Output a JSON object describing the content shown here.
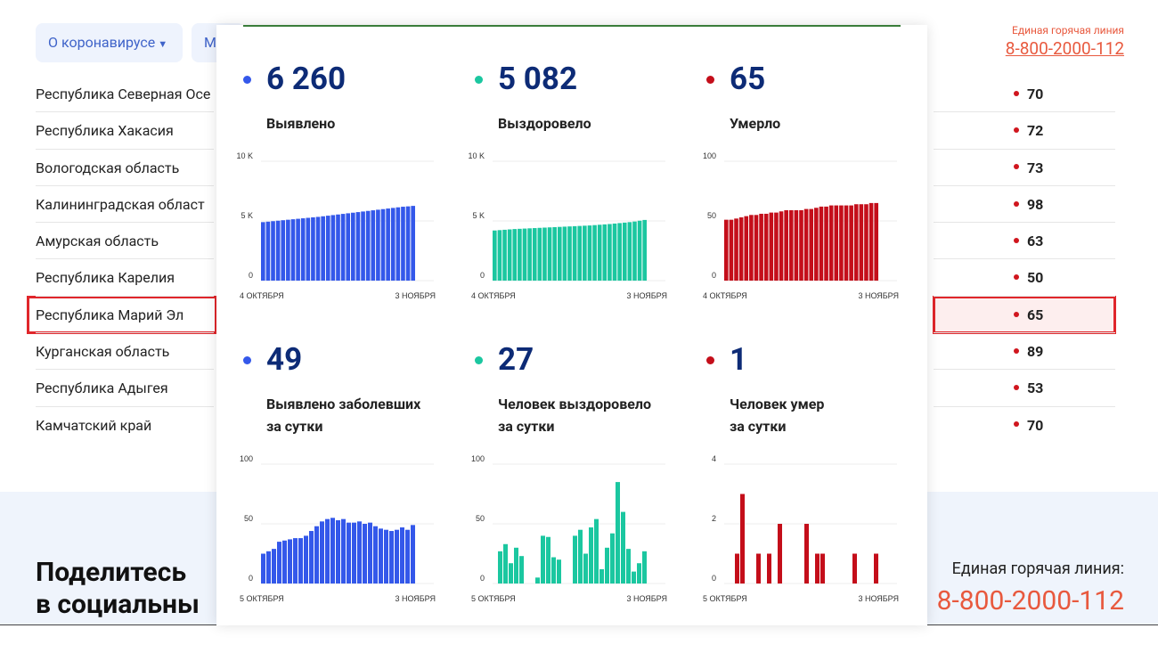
{
  "nav": {
    "about_label": "О коронавирусе",
    "second_label": "М"
  },
  "hotline_top": {
    "label": "Единая горячая линия",
    "number": "8-800-2000-112"
  },
  "regions": [
    {
      "name": "Республика Северная Осе",
      "value": "70"
    },
    {
      "name": "Республика Хакасия",
      "value": "72"
    },
    {
      "name": "Вологодская область",
      "value": "73"
    },
    {
      "name": "Калининградская област",
      "value": "98"
    },
    {
      "name": "Амурская область",
      "value": "63"
    },
    {
      "name": "Республика Карелия",
      "value": "50"
    },
    {
      "name": "Республика Марий Эл",
      "value": "65"
    },
    {
      "name": "Курганская область",
      "value": "89"
    },
    {
      "name": "Республика Адыгея",
      "value": "53"
    },
    {
      "name": "Камчатский край",
      "value": "70"
    }
  ],
  "share": {
    "line1": "Поделитесь ",
    "line2": "в социальны"
  },
  "hotline_bottom": {
    "label": "Единая горячая линия:",
    "number": "8-800-2000-112"
  },
  "colors": {
    "blue": "#3458ea",
    "green": "#1bc7a0",
    "red": "#c40e1a",
    "accent": "#e8593e"
  },
  "metrics": [
    {
      "id": "m0",
      "value": "6 260",
      "label1": "Выявлено",
      "label2": "",
      "color": "blue"
    },
    {
      "id": "m1",
      "value": "5 082",
      "label1": "Выздоровело",
      "label2": "",
      "color": "green"
    },
    {
      "id": "m2",
      "value": "65",
      "label1": "Умерло",
      "label2": "",
      "color": "red"
    },
    {
      "id": "m3",
      "value": "49",
      "label1": "Выявлено заболевших",
      "label2": "за сутки",
      "color": "blue"
    },
    {
      "id": "m4",
      "value": "27",
      "label1": "Человек выздоровело",
      "label2": "за сутки",
      "color": "green"
    },
    {
      "id": "m5",
      "value": "1",
      "label1": "Человек умер",
      "label2": "за сутки",
      "color": "red"
    }
  ],
  "chart_data": [
    {
      "type": "bar",
      "title": "Выявлено",
      "color": "blue",
      "y_ticks": [
        "0",
        "5 K",
        "10 K"
      ],
      "ylim": [
        0,
        10000
      ],
      "x_start_label": "4 ОКТЯБРЯ",
      "x_end_label": "3 НОЯБРЯ",
      "values": [
        4900,
        4940,
        4980,
        5020,
        5060,
        5100,
        5140,
        5180,
        5220,
        5260,
        5300,
        5340,
        5390,
        5440,
        5490,
        5540,
        5590,
        5640,
        5690,
        5740,
        5790,
        5840,
        5890,
        5940,
        5990,
        6040,
        6090,
        6140,
        6190,
        6220,
        6260
      ]
    },
    {
      "type": "bar",
      "title": "Выздоровело",
      "color": "green",
      "y_ticks": [
        "0",
        "5 K",
        "10 K"
      ],
      "ylim": [
        0,
        10000
      ],
      "x_start_label": "4 ОКТЯБРЯ",
      "x_end_label": "3 НОЯБРЯ",
      "values": [
        4200,
        4230,
        4260,
        4290,
        4320,
        4340,
        4360,
        4380,
        4400,
        4420,
        4440,
        4460,
        4480,
        4500,
        4520,
        4540,
        4560,
        4580,
        4600,
        4620,
        4650,
        4680,
        4710,
        4740,
        4780,
        4820,
        4860,
        4900,
        4950,
        5020,
        5082
      ]
    },
    {
      "type": "bar",
      "title": "Умерло",
      "color": "red",
      "y_ticks": [
        "0",
        "50",
        "100"
      ],
      "ylim": [
        0,
        100
      ],
      "x_start_label": "4 ОКТЯБРЯ",
      "x_end_label": "3 НОЯБРЯ",
      "values": [
        51,
        51,
        52,
        53,
        54,
        55,
        55,
        56,
        56,
        57,
        57,
        58,
        59,
        59,
        59,
        59,
        60,
        60,
        61,
        62,
        62,
        63,
        63,
        63,
        63,
        63,
        64,
        64,
        64,
        65,
        65
      ]
    },
    {
      "type": "bar",
      "title": "Выявлено заболевших за сутки",
      "color": "blue",
      "y_ticks": [
        "0",
        "50",
        "100"
      ],
      "ylim": [
        0,
        100
      ],
      "x_start_label": "5 ОКТЯБРЯ",
      "x_end_label": "3 НОЯБРЯ",
      "values": [
        25,
        27,
        29,
        35,
        36,
        37,
        38,
        38,
        40,
        44,
        48,
        52,
        54,
        55,
        53,
        54,
        51,
        51,
        52,
        50,
        51,
        48,
        46,
        45,
        44,
        45,
        47,
        45,
        49
      ]
    },
    {
      "type": "bar",
      "title": "Человек выздоровело за сутки",
      "color": "green",
      "y_ticks": [
        "0",
        "50",
        "100"
      ],
      "ylim": [
        0,
        100
      ],
      "x_start_label": "5 ОКТЯБРЯ",
      "x_end_label": "3 НОЯБРЯ",
      "values": [
        0,
        27,
        33,
        17,
        30,
        23,
        0,
        0,
        5,
        40,
        39,
        22,
        20,
        0,
        0,
        40,
        45,
        25,
        47,
        54,
        12,
        30,
        42,
        85,
        60,
        29,
        10,
        17,
        27
      ]
    },
    {
      "type": "bar",
      "title": "Человек умер за сутки",
      "color": "red",
      "y_ticks": [
        "0",
        "2",
        "4"
      ],
      "ylim": [
        0,
        4
      ],
      "x_start_label": "5 ОКТЯБРЯ",
      "x_end_label": "3 НОЯБРЯ",
      "values": [
        0,
        0,
        1,
        3,
        0,
        0,
        1,
        0,
        1,
        0,
        2,
        0,
        0,
        0,
        0,
        2,
        0,
        1,
        1,
        0,
        0,
        0,
        0,
        0,
        1,
        0,
        0,
        0,
        1
      ]
    }
  ]
}
